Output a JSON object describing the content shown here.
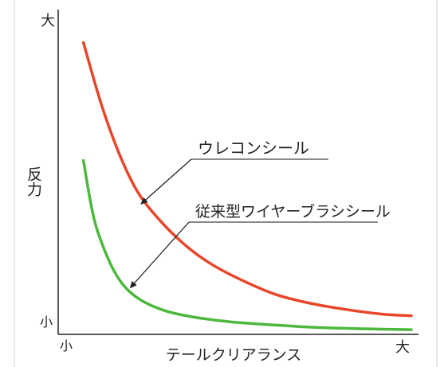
{
  "chart_data": {
    "type": "line",
    "title": "",
    "xlabel": "テールクリアランス",
    "ylabel": "反力",
    "x_tick_low": "小",
    "x_tick_high": "大",
    "y_tick_low": "小",
    "y_tick_high": "大",
    "xlim": [
      0,
      1
    ],
    "ylim": [
      0,
      1
    ],
    "grid": false,
    "legend": "annotations",
    "series": [
      {
        "name": "ウレコンシール",
        "color": "#e8462a",
        "x": [
          0.07,
          0.12,
          0.17,
          0.22,
          0.28,
          0.35,
          0.42,
          0.5,
          0.6,
          0.7,
          0.8,
          0.9,
          0.98
        ],
        "y": [
          0.94,
          0.74,
          0.58,
          0.46,
          0.37,
          0.29,
          0.23,
          0.18,
          0.13,
          0.1,
          0.08,
          0.065,
          0.06
        ]
      },
      {
        "name": "従来型ワイヤーブラシシール",
        "color": "#4cb83d",
        "x": [
          0.07,
          0.1,
          0.14,
          0.18,
          0.23,
          0.3,
          0.38,
          0.48,
          0.6,
          0.72,
          0.85,
          0.98
        ],
        "y": [
          0.56,
          0.37,
          0.24,
          0.16,
          0.11,
          0.075,
          0.055,
          0.04,
          0.03,
          0.022,
          0.018,
          0.015
        ]
      }
    ],
    "annotations": [
      {
        "text": "ウレコンシール",
        "series": 0,
        "arrow_x": 0.23,
        "arrow_y": 0.42
      },
      {
        "text": "従来型ワイヤーブラシシール",
        "series": 1,
        "arrow_x": 0.2,
        "arrow_y": 0.15
      }
    ]
  }
}
